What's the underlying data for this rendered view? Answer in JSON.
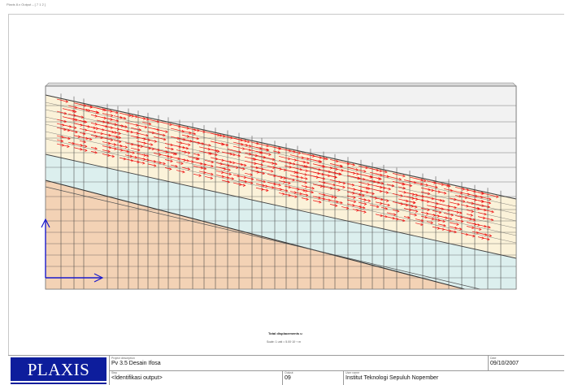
{
  "window": {
    "title": "Plaxis 8.x Output – [ 7 1 2 ]"
  },
  "plot": {
    "legend_title": "Total displacements u",
    "legend_subtitle": "Scale: 1 unit = 5.00·10⁻³ m",
    "colors": {
      "soil_lower": "#f3d2b5",
      "soil_upper": "#fbf2d9",
      "soil_band": "#dcefee",
      "arrows": "#ee1111",
      "axes": "#1a1acc"
    }
  },
  "title_block": {
    "logo": "PLAXIS",
    "project_label": "Project description",
    "project_value": "Pv 3.5 Desain Ifosa",
    "date_label": "Date",
    "date_value": "09/10/2007",
    "step_label": "Step",
    "step_value": "<Identifikasi output>",
    "output_label": "Output",
    "output_value": "09",
    "user_label": "User name",
    "user_value": "Institut Teknologi Sepuluh Nopember"
  }
}
